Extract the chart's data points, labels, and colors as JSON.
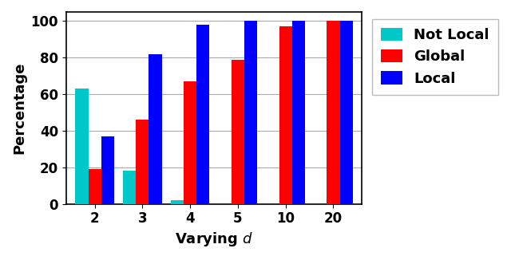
{
  "categories": [
    "2",
    "3",
    "4",
    "5",
    "10",
    "20"
  ],
  "not_local": [
    63,
    18,
    2,
    0,
    0,
    0
  ],
  "global_vals": [
    19,
    46,
    67,
    79,
    97,
    100
  ],
  "local_vals": [
    37,
    82,
    98,
    100,
    100,
    100
  ],
  "colors": {
    "not_local": "#00C8C8",
    "global": "#FF0000",
    "local": "#0000FF"
  },
  "ylabel": "Percentage",
  "xlabel": "Varying $d$",
  "ylim": [
    0,
    105
  ],
  "yticks": [
    0,
    20,
    40,
    60,
    80,
    100
  ],
  "legend_labels": [
    "Not Local",
    "Global",
    "Local"
  ],
  "label_fontsize": 13,
  "tick_fontsize": 12,
  "legend_fontsize": 13,
  "bar_width": 0.27,
  "grid_color": "#aaaaaa"
}
